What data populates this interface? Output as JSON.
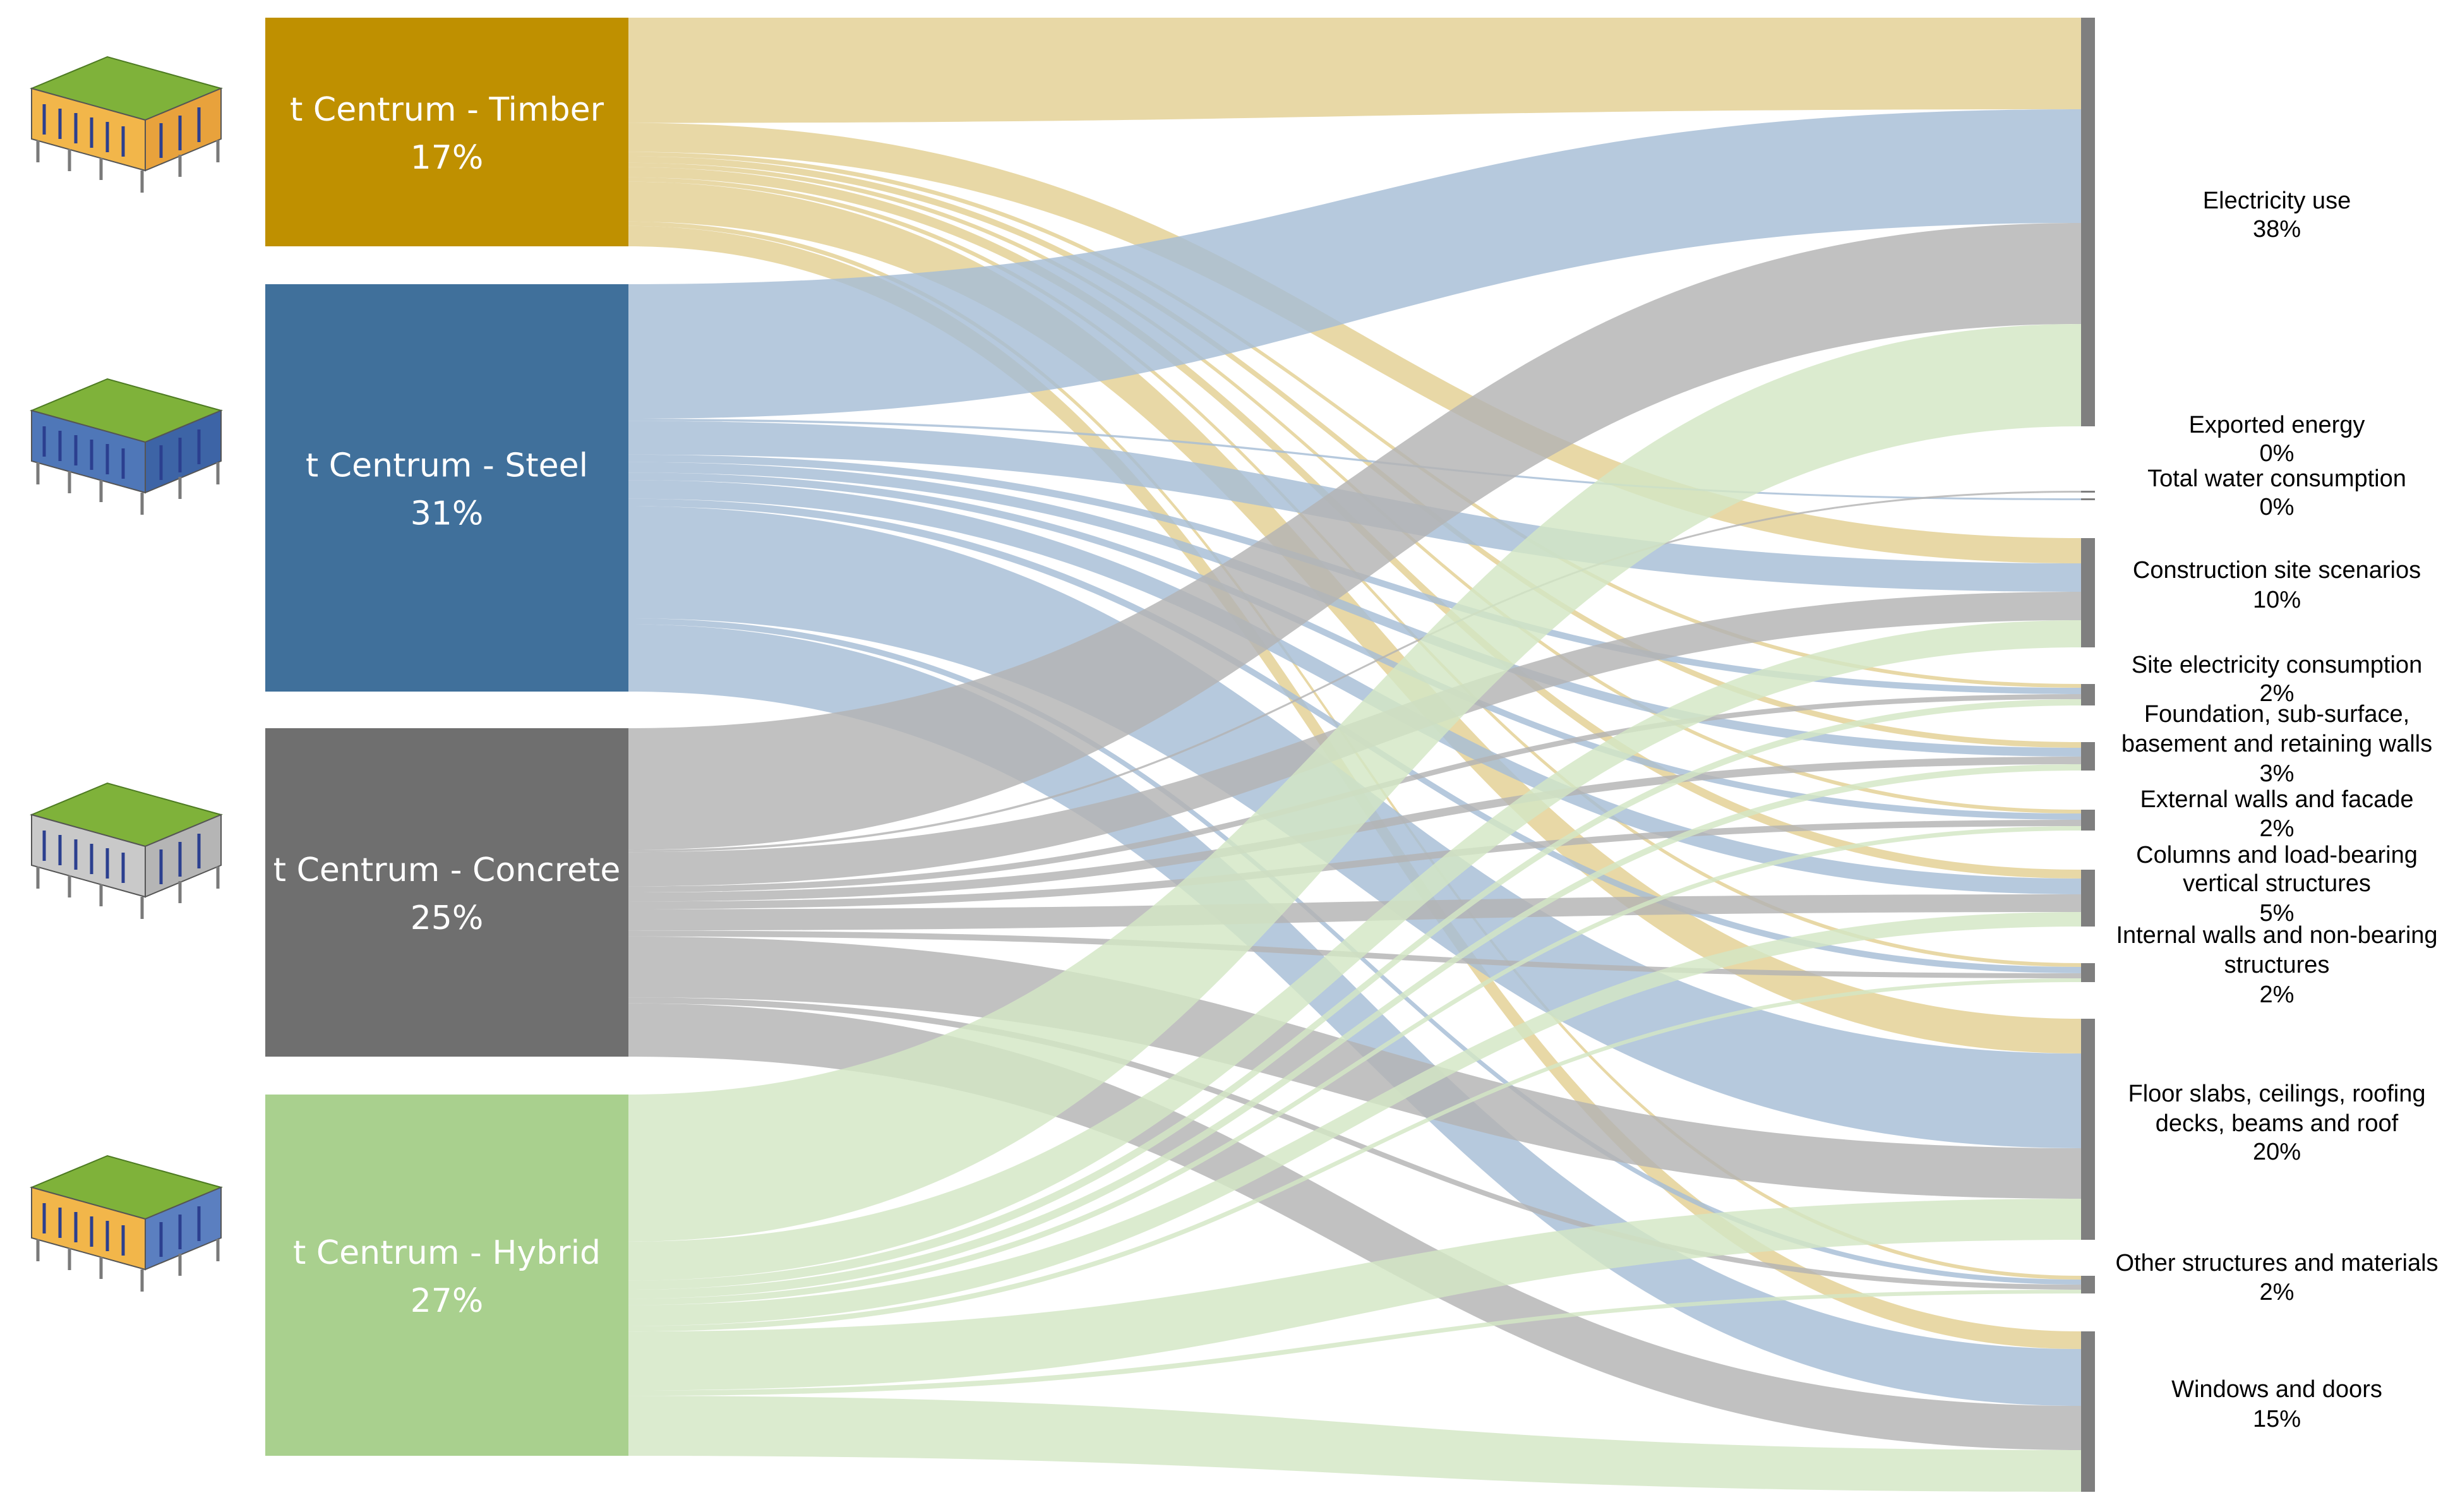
{
  "sources": [
    {
      "id": "timber",
      "name": "t Centrum - Timber",
      "pct": "17%",
      "color": "#bf9000",
      "flow": "#e3d092",
      "dark_text": false,
      "icon": "timber-building-icon"
    },
    {
      "id": "steel",
      "name": "t Centrum - Steel",
      "pct": "31%",
      "color": "#40709b",
      "flow": "#a6bdd6",
      "dark_text": false,
      "icon": "steel-building-icon"
    },
    {
      "id": "concrete",
      "name": "t Centrum - Concrete",
      "pct": "25%",
      "color": "#6f6f6f",
      "flow": "#b3b3b3",
      "dark_text": false,
      "icon": "concrete-building-icon"
    },
    {
      "id": "hybrid",
      "name": "t Centrum - Hybrid",
      "pct": "27%",
      "color": "#a9d08e",
      "flow": "#d3e6c4",
      "dark_text": false,
      "icon": "hybrid-building-icon"
    }
  ],
  "targets": [
    {
      "id": "electricity",
      "lines": [
        "Electricity use",
        "38%"
      ]
    },
    {
      "id": "exported",
      "lines": [
        "Exported energy",
        "0%"
      ]
    },
    {
      "id": "water",
      "lines": [
        "Total water consumption",
        "0%"
      ]
    },
    {
      "id": "site",
      "lines": [
        "Construction site scenarios",
        "10%"
      ]
    },
    {
      "id": "siteelec",
      "lines": [
        "Site electricity consumption",
        "2%"
      ]
    },
    {
      "id": "foundation",
      "lines": [
        "Foundation, sub-surface,",
        "basement and retaining walls",
        "3%"
      ]
    },
    {
      "id": "external",
      "lines": [
        "External walls and facade",
        "2%"
      ]
    },
    {
      "id": "columns",
      "lines": [
        "Columns and load-bearing",
        "vertical structures",
        "5%"
      ]
    },
    {
      "id": "internal",
      "lines": [
        "Internal walls and non-bearing",
        "structures",
        "2%"
      ]
    },
    {
      "id": "floor",
      "lines": [
        "Floor slabs, ceilings, roofing",
        "decks, beams and roof",
        "20%"
      ]
    },
    {
      "id": "other",
      "lines": [
        "Other structures and materials",
        "2%"
      ]
    },
    {
      "id": "windows",
      "lines": [
        "Windows and doors",
        "15%"
      ]
    }
  ],
  "colors": {
    "target_bar": "#7f7f7f",
    "background": "#ffffff"
  }
}
